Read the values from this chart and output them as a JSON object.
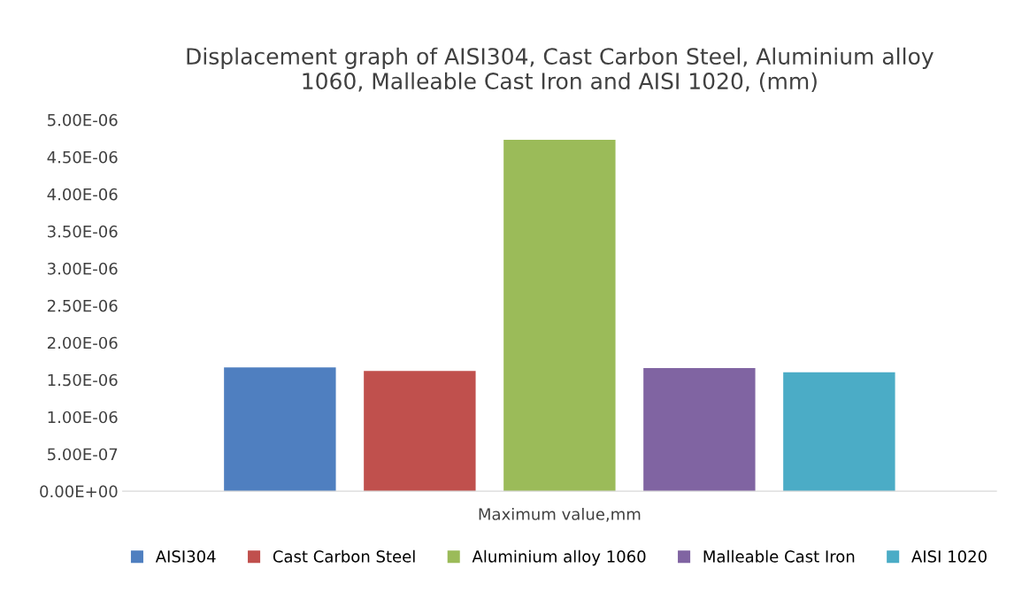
{
  "chart_data": {
    "type": "bar",
    "title": "Displacement graph of AISI304, Cast Carbon Steel, Aluminium alloy\n1060, Malleable Cast Iron and AISI 1020, (mm)",
    "categories": [
      "Maximum value,mm"
    ],
    "series": [
      {
        "name": "AISI304",
        "color": "#4f7fc0",
        "values": [
          1.667e-06
        ]
      },
      {
        "name": "Cast Carbon Steel",
        "color": "#c0504d",
        "values": [
          1.62e-06
        ]
      },
      {
        "name": "Aluminium alloy 1060",
        "color": "#9bbb59",
        "values": [
          4.73e-06
        ]
      },
      {
        "name": "Malleable Cast Iron",
        "color": "#8064a2",
        "values": [
          1.657e-06
        ]
      },
      {
        "name": "AISI 1020",
        "color": "#4bacc6",
        "values": [
          1.6e-06
        ]
      }
    ],
    "ylim": [
      0,
      5e-06
    ],
    "yticks": [
      {
        "value": 0,
        "label": "0.00E+00"
      },
      {
        "value": 5e-07,
        "label": "5.00E-07"
      },
      {
        "value": 1e-06,
        "label": "1.00E-06"
      },
      {
        "value": 1.5e-06,
        "label": "1.50E-06"
      },
      {
        "value": 2e-06,
        "label": "2.00E-06"
      },
      {
        "value": 2.5e-06,
        "label": "2.50E-06"
      },
      {
        "value": 3e-06,
        "label": "3.00E-06"
      },
      {
        "value": 3.5e-06,
        "label": "3.50E-06"
      },
      {
        "value": 4e-06,
        "label": "4.00E-06"
      },
      {
        "value": 4.5e-06,
        "label": "4.50E-06"
      },
      {
        "value": 5e-06,
        "label": "5.00E-06"
      }
    ],
    "grid": false,
    "legend": "bottom"
  }
}
